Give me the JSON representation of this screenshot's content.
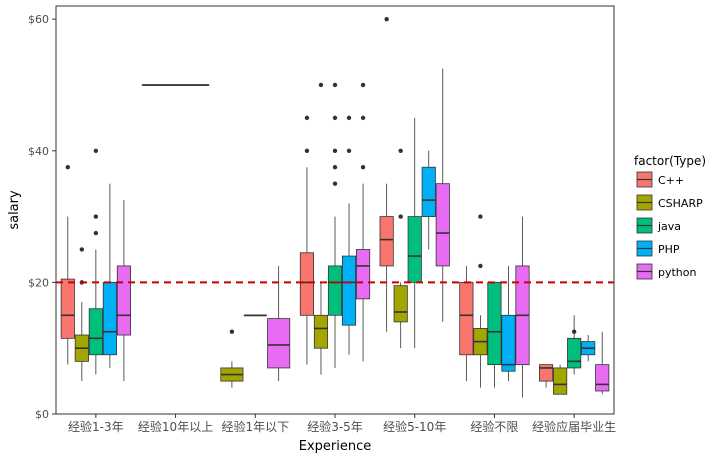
{
  "chart_data": {
    "type": "boxplot",
    "xlabel": "Experience",
    "ylabel": "salary",
    "ylim": [
      0,
      62
    ],
    "y_ticks": [
      {
        "value": 0,
        "label": "$0"
      },
      {
        "value": 20,
        "label": "$20"
      },
      {
        "value": 40,
        "label": "$40"
      },
      {
        "value": 60,
        "label": "$60"
      }
    ],
    "categories": [
      "经验1-3年",
      "经验10年以上",
      "经验1年以下",
      "经验3-5年",
      "经验5-10年",
      "经验不限",
      "经验应届毕业生"
    ],
    "reference_line": {
      "y": 20,
      "color": "#cc0000",
      "style": "dashed"
    },
    "legend": {
      "title": "factor(Type)",
      "position": "right"
    },
    "grid": false,
    "series": [
      {
        "name": "C++",
        "color": "#F8766D",
        "boxes": [
          {
            "category": "经验1-3年",
            "min": 7.5,
            "q1": 11.5,
            "median": 15,
            "q3": 20.5,
            "max": 30,
            "outliers": [
              37.5
            ]
          },
          {
            "category": "经验3-5年",
            "min": 7.5,
            "q1": 15,
            "median": 20,
            "q3": 24.5,
            "max": 37.5,
            "outliers": [
              40,
              45
            ]
          },
          {
            "category": "经验5-10年",
            "min": 12.5,
            "q1": 22.5,
            "median": 26.5,
            "q3": 30,
            "max": 35,
            "outliers": [
              60
            ]
          },
          {
            "category": "经验不限",
            "min": 5,
            "q1": 9,
            "median": 15,
            "q3": 20,
            "max": 22.5,
            "outliers": []
          },
          {
            "category": "经验应届毕业生",
            "min": 4,
            "q1": 5,
            "median": 7,
            "q3": 7.5,
            "max": 7.5,
            "outliers": []
          }
        ]
      },
      {
        "name": "CSHARP",
        "color": "#A3A500",
        "boxes": [
          {
            "category": "经验1-3年",
            "min": 5,
            "q1": 8,
            "median": 10,
            "q3": 12,
            "max": 17,
            "outliers": [
              20,
              25
            ]
          },
          {
            "category": "经验1年以下",
            "min": 4,
            "q1": 5,
            "median": 6,
            "q3": 7,
            "max": 8,
            "outliers": [
              12.5
            ]
          },
          {
            "category": "经验3-5年",
            "min": 6,
            "q1": 10,
            "median": 13,
            "q3": 15,
            "max": 20,
            "outliers": [
              50
            ]
          },
          {
            "category": "经验5-10年",
            "min": 10,
            "q1": 14,
            "median": 15.5,
            "q3": 19.5,
            "max": 20,
            "outliers": [
              30,
              40
            ]
          },
          {
            "category": "经验不限",
            "min": 4,
            "q1": 9,
            "median": 11,
            "q3": 13,
            "max": 15,
            "outliers": [
              22.5,
              30
            ]
          },
          {
            "category": "经验应届毕业生",
            "min": 3,
            "q1": 3,
            "median": 4.5,
            "q3": 7,
            "max": 7.5,
            "outliers": []
          }
        ]
      },
      {
        "name": "java",
        "color": "#00BF7D",
        "boxes": [
          {
            "category": "经验1-3年",
            "min": 6,
            "q1": 9,
            "median": 11.5,
            "q3": 16,
            "max": 25,
            "outliers": [
              27.5,
              30,
              40
            ]
          },
          {
            "category": "经验3-5年",
            "min": 7,
            "q1": 15,
            "median": 20,
            "q3": 22.5,
            "max": 30,
            "outliers": [
              35,
              37.5,
              40,
              45,
              50
            ]
          },
          {
            "category": "经验5-10年",
            "min": 10,
            "q1": 20,
            "median": 24,
            "q3": 30,
            "max": 45,
            "outliers": []
          },
          {
            "category": "经验不限",
            "min": 4,
            "q1": 7.5,
            "median": 12.5,
            "q3": 20,
            "max": 20,
            "outliers": []
          },
          {
            "category": "经验应届毕业生",
            "min": 6,
            "q1": 7,
            "median": 8,
            "q3": 11.5,
            "max": 15,
            "outliers": [
              12.5
            ]
          }
        ]
      },
      {
        "name": "PHP",
        "color": "#00B0F6",
        "boxes": [
          {
            "category": "经验1-3年",
            "min": 7,
            "q1": 9,
            "median": 12.5,
            "q3": 20,
            "max": 35,
            "outliers": []
          },
          {
            "category": "经验10年以上",
            "min": 50,
            "q1": 50,
            "median": 50,
            "q3": 50,
            "max": 50,
            "outliers": []
          },
          {
            "category": "经验1年以下",
            "min": 15,
            "q1": 15,
            "median": 15,
            "q3": 15,
            "max": 15,
            "outliers": []
          },
          {
            "category": "经验3-5年",
            "min": 9,
            "q1": 13.5,
            "median": 20,
            "q3": 24,
            "max": 32,
            "outliers": [
              40,
              45
            ]
          },
          {
            "category": "经验5-10年",
            "min": 25,
            "q1": 30,
            "median": 32.5,
            "q3": 37.5,
            "max": 40,
            "outliers": []
          },
          {
            "category": "经验不限",
            "min": 5,
            "q1": 6.5,
            "median": 7.5,
            "q3": 15,
            "max": 22.5,
            "outliers": []
          },
          {
            "category": "经验应届毕业生",
            "min": 8,
            "q1": 9,
            "median": 10,
            "q3": 11,
            "max": 12,
            "outliers": []
          }
        ]
      },
      {
        "name": "python",
        "color": "#E76BF3",
        "boxes": [
          {
            "category": "经验1-3年",
            "min": 5,
            "q1": 12,
            "median": 15,
            "q3": 22.5,
            "max": 32.5,
            "outliers": []
          },
          {
            "category": "经验1年以下",
            "min": 5,
            "q1": 7,
            "median": 10.5,
            "q3": 14.5,
            "max": 22.5,
            "outliers": []
          },
          {
            "category": "经验3-5年",
            "min": 8,
            "q1": 17.5,
            "median": 22.5,
            "q3": 25,
            "max": 35,
            "outliers": [
              37.5,
              45,
              50
            ]
          },
          {
            "category": "经验5-10年",
            "min": 14,
            "q1": 22.5,
            "median": 27.5,
            "q3": 35,
            "max": 52.5,
            "outliers": []
          },
          {
            "category": "经验不限",
            "min": 2.5,
            "q1": 7.5,
            "median": 15,
            "q3": 22.5,
            "max": 30,
            "outliers": []
          },
          {
            "category": "经验应届毕业生",
            "min": 3,
            "q1": 3.5,
            "median": 4.5,
            "q3": 7.5,
            "max": 12.5,
            "outliers": []
          }
        ]
      }
    ]
  }
}
